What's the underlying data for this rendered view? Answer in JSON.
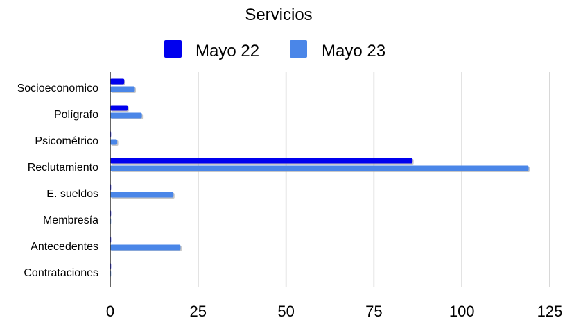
{
  "chart_data": {
    "type": "bar",
    "orientation": "horizontal",
    "title": "Servicios",
    "categories": [
      "Socioeconomico",
      "Polígrafo",
      "Psicométrico",
      "Reclutamiento",
      "E. sueldos",
      "Membresía",
      "Antecedentes",
      "Contrataciones"
    ],
    "series": [
      {
        "name": "Mayo 22",
        "color": "#0000ee",
        "values": [
          4,
          5,
          0,
          86,
          0,
          0,
          0,
          0
        ]
      },
      {
        "name": "Mayo 23",
        "color": "#4a86e8",
        "values": [
          7,
          9,
          2,
          119,
          18,
          0,
          20,
          0
        ]
      }
    ],
    "xlim": [
      0,
      125
    ],
    "xticks": [
      "0",
      "25",
      "50",
      "75",
      "100",
      "125"
    ],
    "xlabel": "",
    "ylabel": "",
    "grid": true,
    "legend_position": "top"
  }
}
